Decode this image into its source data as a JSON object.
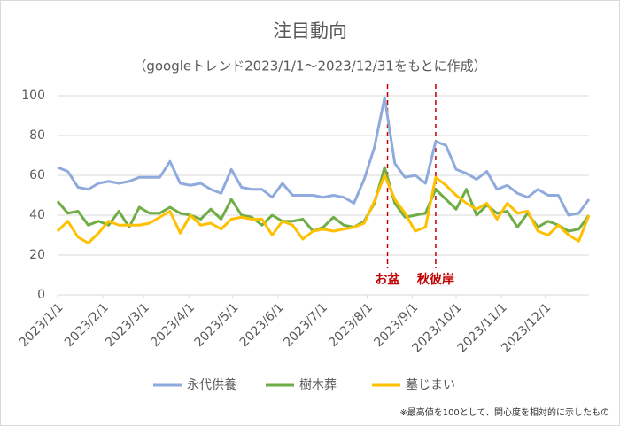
{
  "chart_data": {
    "type": "line",
    "title": "注目動向",
    "subtitle": "（googleトレンド2023/1/1～2023/12/31をもとに作成）",
    "note": "※最高値を100として、関心度を相対的に示したもの",
    "x": [
      0,
      7,
      14,
      21,
      28,
      35,
      42,
      49,
      56,
      63,
      70,
      77,
      84,
      91,
      98,
      105,
      112,
      119,
      126,
      133,
      140,
      147,
      154,
      161,
      168,
      175,
      182,
      189,
      196,
      203,
      210,
      217,
      224,
      231,
      238,
      245,
      252,
      259,
      266,
      273,
      280,
      287,
      294,
      301,
      308,
      315,
      322,
      329,
      336,
      343,
      350,
      357,
      364
    ],
    "xlim": [
      0,
      364
    ],
    "xticks": [
      {
        "value": 0,
        "label": "2023/1/1"
      },
      {
        "value": 31,
        "label": "2023/2/1"
      },
      {
        "value": 59,
        "label": "2023/3/1"
      },
      {
        "value": 90,
        "label": "2023/4/1"
      },
      {
        "value": 120,
        "label": "2023/5/1"
      },
      {
        "value": 151,
        "label": "2023/6/1"
      },
      {
        "value": 181,
        "label": "2023/7/1"
      },
      {
        "value": 212,
        "label": "2023/8/1"
      },
      {
        "value": 243,
        "label": "2023/9/1"
      },
      {
        "value": 273,
        "label": "2023/10/1"
      },
      {
        "value": 304,
        "label": "2023/11/1"
      },
      {
        "value": 334,
        "label": "2023/12/1"
      }
    ],
    "ylim": [
      0,
      100
    ],
    "yticks": [
      0,
      20,
      40,
      60,
      80,
      100
    ],
    "grid": true,
    "legend": "bottom",
    "annotations": [
      {
        "label": "お盆",
        "x": 226,
        "color": "#c00000"
      },
      {
        "label": "秋彼岸",
        "x": 259,
        "color": "#c00000"
      }
    ],
    "series": [
      {
        "name": "永代供養",
        "color": "#8faadc",
        "values": [
          64,
          62,
          54,
          53,
          56,
          57,
          56,
          57,
          59,
          59,
          59,
          67,
          56,
          55,
          56,
          53,
          51,
          63,
          54,
          53,
          53,
          49,
          56,
          50,
          50,
          50,
          49,
          50,
          49,
          46,
          58,
          74,
          99,
          66,
          59,
          60,
          56,
          77,
          75,
          63,
          61,
          58,
          62,
          53,
          55,
          51,
          49,
          53,
          50,
          50,
          40,
          41,
          48
        ]
      },
      {
        "name": "樹木葬",
        "color": "#70ad47",
        "values": [
          47,
          41,
          42,
          35,
          37,
          35,
          42,
          34,
          44,
          41,
          41,
          44,
          41,
          40,
          38,
          43,
          38,
          48,
          40,
          39,
          35,
          40,
          37,
          37,
          38,
          32,
          34,
          39,
          35,
          34,
          37,
          46,
          64,
          46,
          39,
          40,
          41,
          53,
          48,
          43,
          53,
          40,
          45,
          41,
          42,
          34,
          41,
          34,
          37,
          35,
          32,
          33,
          40
        ]
      },
      {
        "name": "墓じまい",
        "color": "#ffc000",
        "values": [
          32,
          37,
          29,
          26,
          31,
          37,
          35,
          35,
          35,
          36,
          39,
          42,
          31,
          40,
          35,
          36,
          33,
          38,
          39,
          38,
          38,
          30,
          37,
          35,
          28,
          32,
          33,
          32,
          33,
          34,
          36,
          47,
          60,
          48,
          41,
          32,
          34,
          59,
          55,
          50,
          46,
          43,
          46,
          38,
          46,
          41,
          42,
          32,
          30,
          35,
          30,
          27,
          40
        ]
      }
    ]
  }
}
